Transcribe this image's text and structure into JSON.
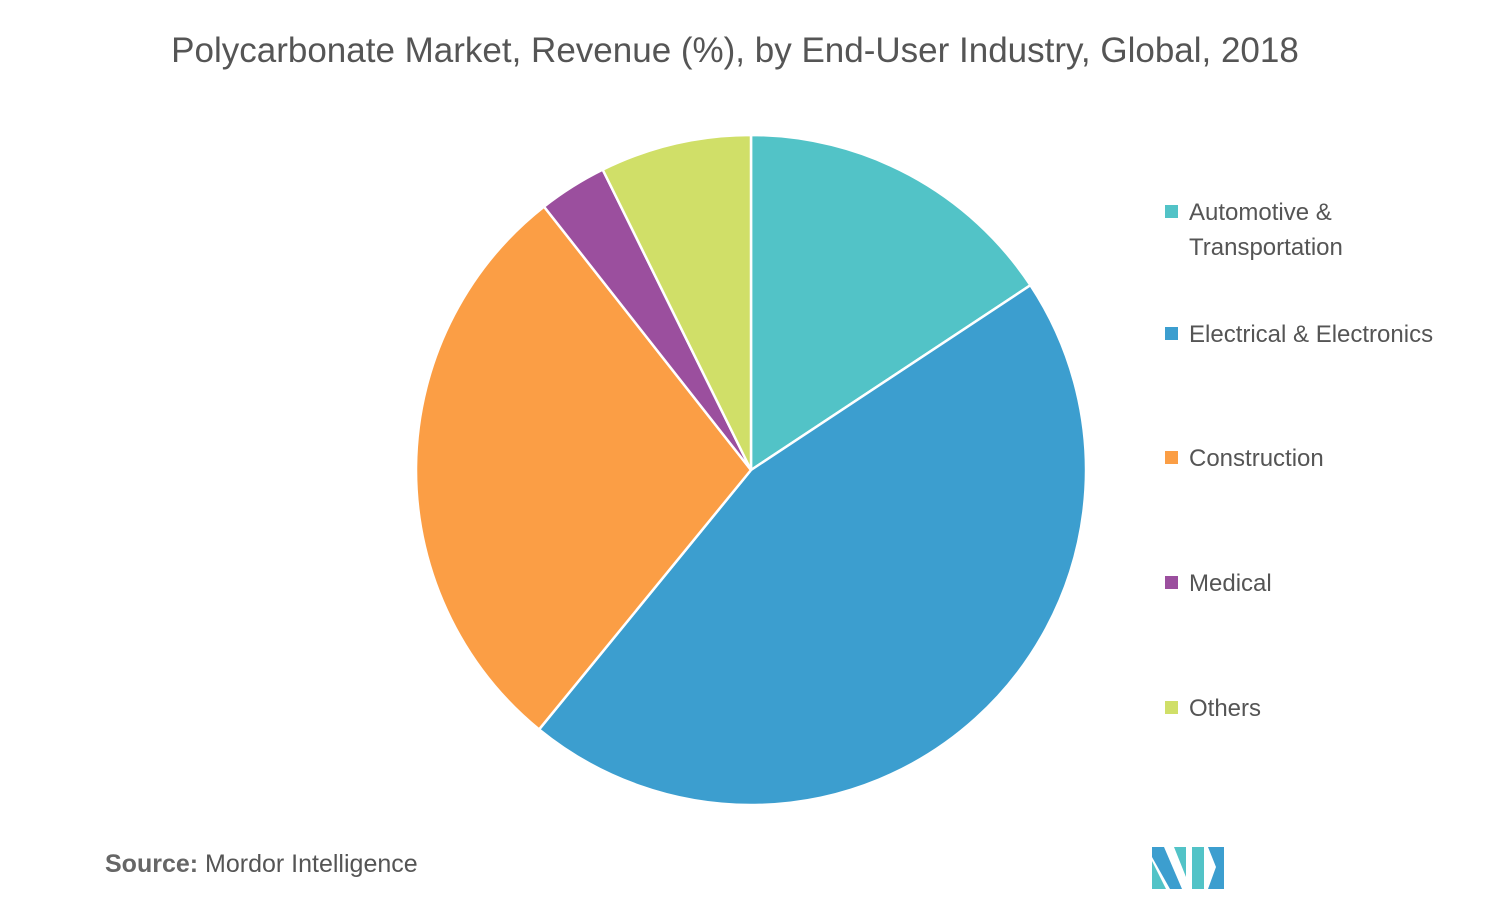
{
  "chart_data": {
    "type": "pie",
    "title": "Polycarbonate Market, Revenue (%), by End-User Industry, Global, 2018",
    "categories": [
      "Automotive & Transportation",
      "Electrical & Electronics",
      "Construction",
      "Medical",
      "Others"
    ],
    "values": [
      15.7,
      45.2,
      28.5,
      3.3,
      7.3
    ],
    "colors": [
      "#52C3C7",
      "#3C9ECF",
      "#FB9E45",
      "#9B4F9E",
      "#D0DF68"
    ],
    "legend_position": "right"
  },
  "source": {
    "label": "Source:",
    "text": "Mordor Intelligence"
  }
}
